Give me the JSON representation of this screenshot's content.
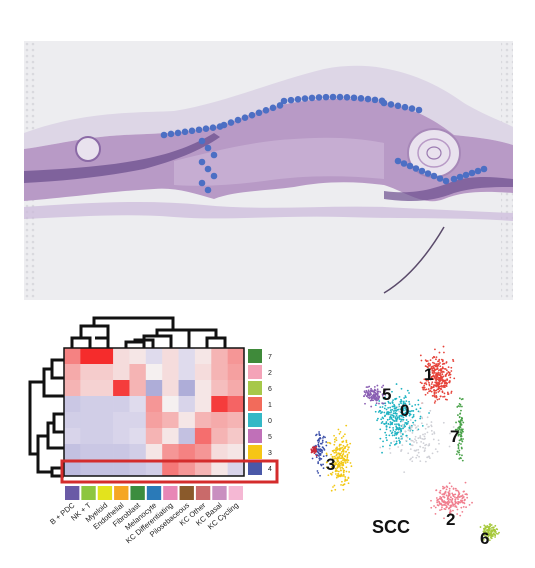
{
  "heatmap": {
    "cell_types": [
      "B + PDC",
      "NK + T",
      "Myeloid",
      "Endothelial",
      "Fibroblast",
      "Melanocyte",
      "KC Differentiating",
      "Pilosebaceous",
      "KC Other",
      "KC Basal",
      "KC Cycling"
    ],
    "cell_type_colors": [
      "#6a5aa6",
      "#8dc63f",
      "#e3e31d",
      "#f5a623",
      "#3c8d3f",
      "#2a7ab8",
      "#e887b6",
      "#8a5a2b",
      "#c96a6a",
      "#c98fc0",
      "#f5b8d4"
    ],
    "clusters": [
      "7",
      "2",
      "6",
      "1",
      "0",
      "5",
      "3",
      "4"
    ],
    "cluster_colors": [
      "#3f8a3a",
      "#f4a3b8",
      "#a6c84a",
      "#f26b5b",
      "#34b8c6",
      "#c070b8",
      "#f6c615",
      "#4a58a8"
    ],
    "highlighted_cluster": "4",
    "matrix": [
      [
        0.55,
        0.98,
        0.98,
        0.1,
        0.05,
        -0.05,
        0.1,
        -0.05,
        0.05,
        0.3,
        0.45
      ],
      [
        0.35,
        0.18,
        0.18,
        0.1,
        0.3,
        0.0,
        0.1,
        -0.05,
        0.1,
        0.3,
        0.4
      ],
      [
        0.3,
        0.15,
        0.15,
        0.9,
        0.3,
        -0.4,
        0.1,
        -0.4,
        0.05,
        0.25,
        0.35
      ],
      [
        -0.2,
        -0.15,
        -0.15,
        -0.15,
        -0.05,
        0.45,
        0.0,
        -0.1,
        0.05,
        0.9,
        0.7
      ],
      [
        -0.15,
        -0.15,
        -0.15,
        -0.1,
        -0.1,
        0.4,
        0.3,
        0.05,
        0.3,
        0.35,
        0.3
      ],
      [
        -0.1,
        -0.15,
        -0.15,
        -0.1,
        -0.05,
        0.3,
        0.05,
        -0.25,
        0.65,
        0.3,
        0.2
      ],
      [
        -0.25,
        -0.2,
        -0.2,
        -0.2,
        -0.15,
        0.05,
        0.45,
        0.55,
        0.45,
        0.1,
        0.05
      ],
      [
        -0.3,
        -0.25,
        -0.25,
        -0.25,
        -0.2,
        -0.15,
        0.6,
        0.45,
        0.3,
        0.05,
        -0.1
      ]
    ]
  },
  "umap": {
    "title": "SCC",
    "cluster_labels": [
      "1",
      "5",
      "0",
      "7",
      "3",
      "2",
      "6"
    ]
  }
}
